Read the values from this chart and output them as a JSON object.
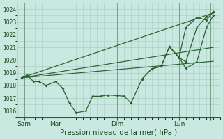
{
  "bg_color": "#c8e8e0",
  "grid_color": "#a8ccc4",
  "line_color": "#2a6030",
  "xlabel": "Pression niveau de la mer( hPa )",
  "ylim": [
    1015.5,
    1024.5
  ],
  "yticks": [
    1016,
    1017,
    1018,
    1019,
    1020,
    1021,
    1022,
    1023,
    1024
  ],
  "xlim": [
    -0.3,
    14.5
  ],
  "xtick_positions": [
    0.2,
    2.5,
    7.0,
    11.5,
    13.8
  ],
  "xtick_labels": [
    "Sam",
    "Mar",
    "Dim",
    "Lun",
    ""
  ],
  "vline_x": [
    0.2,
    2.5,
    7.0,
    11.5,
    13.8
  ],
  "main_x": [
    0.0,
    0.4,
    0.9,
    1.3,
    1.8,
    2.5,
    3.0,
    3.5,
    4.0,
    4.7,
    5.2,
    5.8,
    6.3,
    7.0,
    7.5,
    8.0,
    8.8,
    9.5,
    10.2,
    10.8,
    11.5,
    12.0,
    12.8,
    13.5,
    14.0
  ],
  "main_y": [
    1018.6,
    1018.8,
    1018.3,
    1018.3,
    1018.0,
    1018.3,
    1017.8,
    1016.6,
    1015.85,
    1016.0,
    1017.15,
    1017.15,
    1017.25,
    1017.2,
    1017.15,
    1016.6,
    1018.5,
    1019.3,
    1019.5,
    1021.05,
    1020.2,
    1019.35,
    1019.85,
    1022.55,
    1023.5
  ],
  "trend1_x": [
    0.0,
    14.0
  ],
  "trend1_y": [
    1018.6,
    1023.7
  ],
  "trend2_x": [
    0.0,
    14.0
  ],
  "trend2_y": [
    1018.6,
    1021.0
  ],
  "trend3_x": [
    0.0,
    14.0
  ],
  "trend3_y": [
    1018.6,
    1019.9
  ],
  "upper1_x": [
    8.8,
    9.5,
    10.2,
    10.8,
    11.5,
    12.0,
    12.8,
    13.5,
    14.0
  ],
  "upper1_y": [
    1018.5,
    1019.3,
    1019.5,
    1021.05,
    1020.2,
    1019.85,
    1022.55,
    1023.4,
    1023.8
  ],
  "upper2_x": [
    10.8,
    11.5,
    12.0,
    12.8,
    13.5,
    14.0
  ],
  "upper2_y": [
    1021.05,
    1020.2,
    1022.55,
    1023.35,
    1023.15,
    1023.8
  ]
}
